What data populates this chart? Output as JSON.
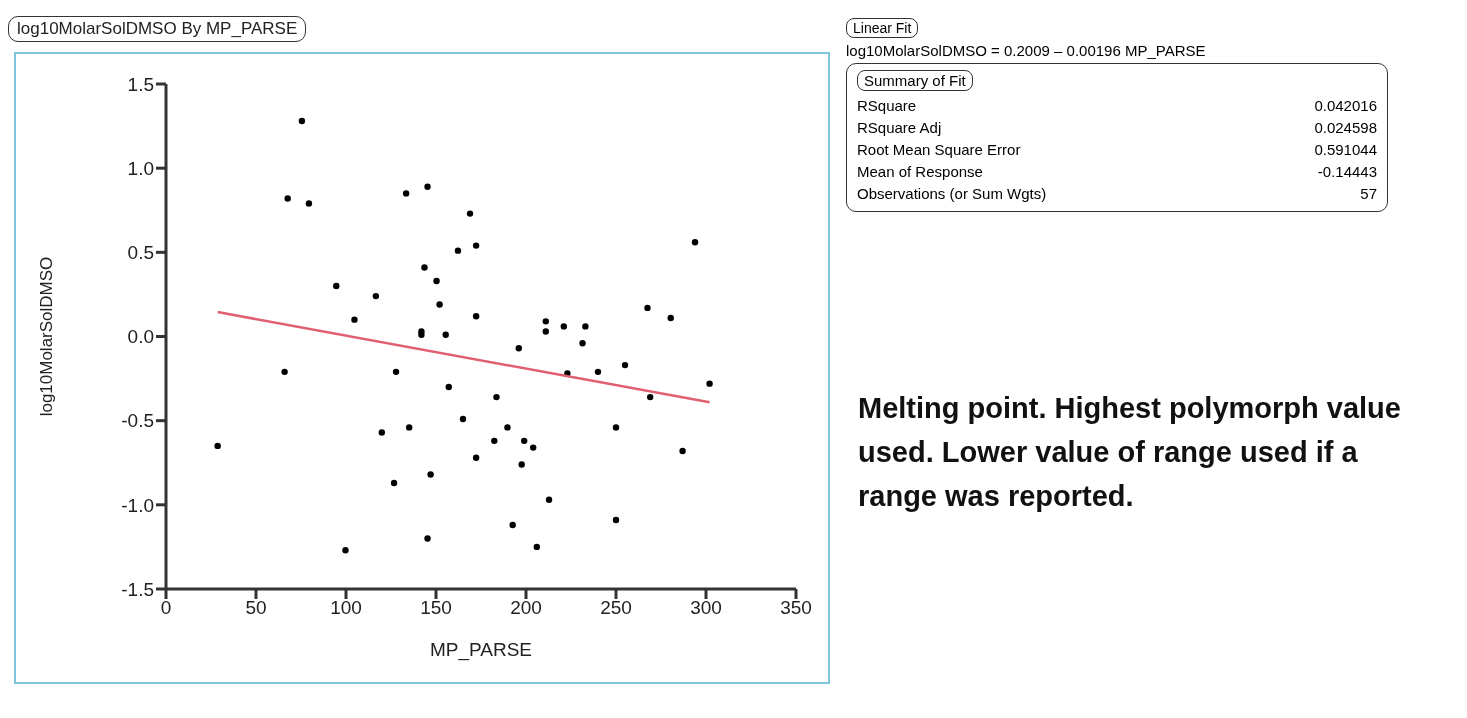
{
  "chart_data": {
    "type": "scatter",
    "title": "log10MolarSolDMSO By MP_PARSE",
    "xlabel": "MP_PARSE",
    "ylabel": "log10MolarSolDMSO",
    "xlim": [
      0,
      350
    ],
    "xticks": [
      0,
      50,
      100,
      150,
      200,
      250,
      300,
      350
    ],
    "ylim": [
      -1.5,
      1.5
    ],
    "yticks": [
      -1.5,
      {
        "value": -1,
        "label": "-1.0"
      },
      -0.5,
      {
        "value": 0,
        "label": "0.0"
      },
      0.5,
      {
        "value": 1,
        "label": "1.0"
      },
      1.5
    ],
    "grid": false,
    "legend": false,
    "series": [
      {
        "marker": "circle",
        "color": "#000000",
        "x": [
          28.7,
          65.9,
          67.6,
          75.5,
          79.4,
          94.6,
          99.7,
          104.7,
          116.6,
          119.9,
          126.7,
          127.8,
          133.4,
          135.1,
          141.9,
          141.9,
          143.6,
          145.3,
          145.3,
          147,
          150.3,
          152,
          155.4,
          157.1,
          162.2,
          165,
          168.9,
          172.3,
          172.3,
          172.3,
          182.4,
          183.6,
          189.7,
          192.6,
          196,
          197.6,
          199,
          204,
          206,
          211,
          211,
          212.8,
          221,
          223,
          231.4,
          233,
          240,
          250,
          250,
          255,
          267.5,
          269,
          280.4,
          287,
          293.9,
          302
        ],
        "values": [
          -0.65,
          -0.21,
          0.82,
          1.28,
          0.79,
          0.3,
          -1.27,
          0.1,
          0.24,
          -0.57,
          -0.87,
          -0.21,
          0.85,
          -0.54,
          0.03,
          0.01,
          0.41,
          0.89,
          -1.2,
          -0.82,
          0.33,
          0.19,
          0.01,
          -0.3,
          0.51,
          -0.49,
          0.73,
          0.54,
          0.12,
          -0.72,
          -0.62,
          -0.36,
          -0.54,
          -1.12,
          -0.07,
          -0.76,
          -0.62,
          -0.66,
          -1.25,
          0.09,
          0.03,
          -0.97,
          0.06,
          -0.22,
          -0.04,
          0.06,
          -0.21,
          -0.54,
          -1.09,
          -0.17,
          0.17,
          -0.36,
          0.11,
          -0.68,
          0.56,
          -0.28
        ]
      },
      {
        "type": "line",
        "marker": "none",
        "color": "#e06070",
        "x": [
          28.7,
          302
        ],
        "values": [
          0.145,
          -0.391
        ]
      }
    ],
    "annotations": [
      "Linear Fit",
      "log10MolarSolDMSO = 0.2009 – 0.00196 MP_PARSE",
      "Summary of Fit",
      "RSquare",
      "0.042016",
      "RSquare Adj",
      "0.024598",
      "Root Mean Square Error",
      "0.591044",
      "Mean of Response",
      "-0.14443",
      "Observations (or Sum Wgts)",
      "57",
      "Melting point. Highest polymorph value used. Lower value of range used if a range was reported."
    ]
  }
}
